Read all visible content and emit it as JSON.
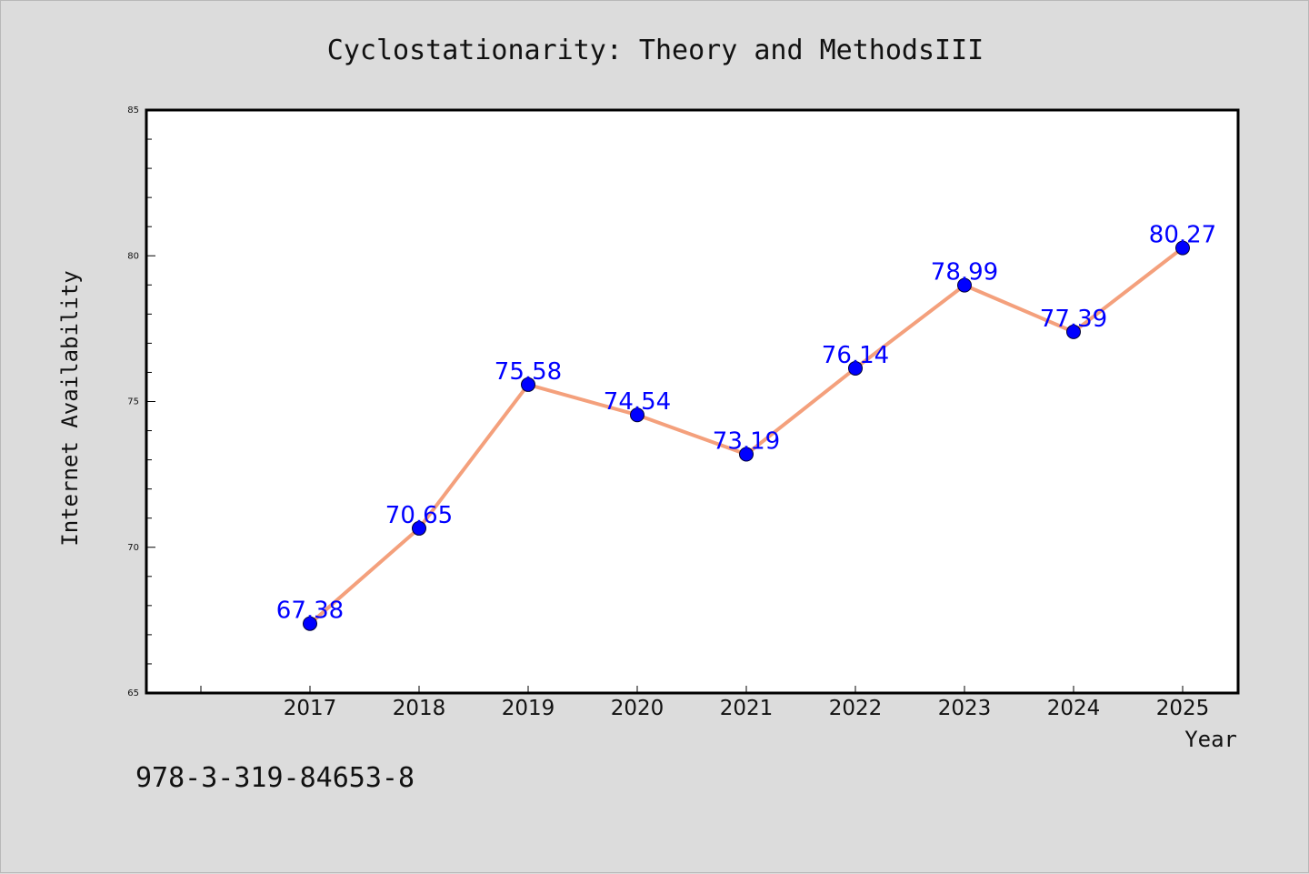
{
  "chart_data": {
    "type": "line",
    "title": "Cyclostationarity: Theory and MethodsIII",
    "xlabel": "Year",
    "ylabel": "Internet Availability",
    "categories": [
      "2017",
      "2018",
      "2019",
      "2020",
      "2021",
      "2022",
      "2023",
      "2024",
      "2025"
    ],
    "series": [
      {
        "values": [
          67.38,
          70.65,
          75.58,
          74.54,
          73.19,
          76.14,
          78.99,
          77.39,
          80.27
        ],
        "data_labels": [
          "67.38",
          "70.65",
          "75.58",
          "74.54",
          "73.19",
          "76.14",
          "78.99",
          "77.39",
          "80.27"
        ],
        "line_color": "#f4a07c",
        "marker_color": "#0000ff"
      }
    ],
    "ylim": [
      65,
      85
    ],
    "yticks": [
      "65",
      "70",
      "75",
      "80",
      "85"
    ],
    "grid": false,
    "legend": "none"
  },
  "footer": {
    "isbn": "978-3-319-84653-8"
  }
}
